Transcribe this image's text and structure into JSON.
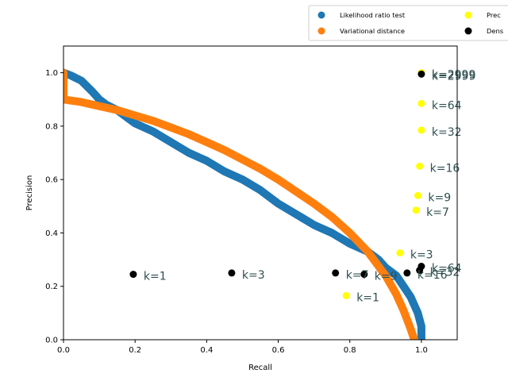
{
  "chart_data": {
    "type": "scatter",
    "xlabel": "Recall",
    "ylabel": "Precision",
    "xlim": [
      0.0,
      1.1
    ],
    "ylim": [
      0.0,
      1.1
    ],
    "x_ticks": [
      "0.0",
      "0.2",
      "0.4",
      "0.6",
      "0.8",
      "1.0"
    ],
    "y_ticks": [
      "0.0",
      "0.2",
      "0.4",
      "0.6",
      "0.8",
      "1.0"
    ],
    "grid": false,
    "legend_position": "top-right (outside plot)",
    "series": [
      {
        "name": "Likelihood ratio test",
        "color": "#1f77b4",
        "style": "curve",
        "points": [
          [
            0.0,
            1.0
          ],
          [
            0.02,
            0.99
          ],
          [
            0.05,
            0.97
          ],
          [
            0.08,
            0.93
          ],
          [
            0.1,
            0.9
          ],
          [
            0.12,
            0.88
          ],
          [
            0.15,
            0.86
          ],
          [
            0.18,
            0.83
          ],
          [
            0.2,
            0.81
          ],
          [
            0.25,
            0.78
          ],
          [
            0.3,
            0.74
          ],
          [
            0.35,
            0.7
          ],
          [
            0.4,
            0.67
          ],
          [
            0.45,
            0.63
          ],
          [
            0.5,
            0.6
          ],
          [
            0.55,
            0.56
          ],
          [
            0.6,
            0.51
          ],
          [
            0.65,
            0.47
          ],
          [
            0.7,
            0.43
          ],
          [
            0.75,
            0.4
          ],
          [
            0.8,
            0.36
          ],
          [
            0.85,
            0.33
          ],
          [
            0.88,
            0.3
          ],
          [
            0.9,
            0.27
          ],
          [
            0.93,
            0.24
          ],
          [
            0.95,
            0.2
          ],
          [
            0.97,
            0.16
          ],
          [
            0.99,
            0.1
          ],
          [
            1.0,
            0.05
          ],
          [
            1.0,
            0.0
          ]
        ]
      },
      {
        "name": "Variational distance",
        "color": "#ff7f0e",
        "style": "curve",
        "points": [
          [
            0.0,
            1.0
          ],
          [
            0.0,
            0.9
          ],
          [
            0.05,
            0.89
          ],
          [
            0.1,
            0.875
          ],
          [
            0.15,
            0.86
          ],
          [
            0.2,
            0.84
          ],
          [
            0.25,
            0.82
          ],
          [
            0.3,
            0.795
          ],
          [
            0.35,
            0.77
          ],
          [
            0.4,
            0.74
          ],
          [
            0.45,
            0.71
          ],
          [
            0.5,
            0.675
          ],
          [
            0.55,
            0.64
          ],
          [
            0.6,
            0.6
          ],
          [
            0.65,
            0.555
          ],
          [
            0.7,
            0.51
          ],
          [
            0.75,
            0.46
          ],
          [
            0.8,
            0.4
          ],
          [
            0.85,
            0.33
          ],
          [
            0.9,
            0.24
          ],
          [
            0.93,
            0.17
          ],
          [
            0.95,
            0.11
          ],
          [
            0.97,
            0.04
          ],
          [
            0.98,
            0.0
          ]
        ]
      },
      {
        "name": "Precision",
        "color": "#ffff00",
        "style": "points",
        "points": [
          {
            "x": 0.79,
            "y": 0.165,
            "label": "k=1"
          },
          {
            "x": 0.94,
            "y": 0.325,
            "label": "k=3"
          },
          {
            "x": 0.985,
            "y": 0.485,
            "label": "k=7"
          },
          {
            "x": 0.99,
            "y": 0.54,
            "label": "k=9"
          },
          {
            "x": 0.995,
            "y": 0.65,
            "label": "k=16"
          },
          {
            "x": 1.0,
            "y": 0.785,
            "label": "k=32"
          },
          {
            "x": 1.0,
            "y": 0.885,
            "label": "k=64"
          },
          {
            "x": 1.0,
            "y": 1.0,
            "label": "k=2999"
          }
        ]
      },
      {
        "name": "Dens",
        "color": "#000000",
        "style": "points",
        "points": [
          {
            "x": 0.195,
            "y": 0.245,
            "label": "k=1"
          },
          {
            "x": 0.47,
            "y": 0.25,
            "label": "k=3"
          },
          {
            "x": 0.76,
            "y": 0.25,
            "label": "k=7"
          },
          {
            "x": 0.84,
            "y": 0.245,
            "label": "k=9"
          },
          {
            "x": 0.96,
            "y": 0.25,
            "label": "k=16"
          },
          {
            "x": 0.995,
            "y": 0.26,
            "label": "k=32"
          },
          {
            "x": 1.0,
            "y": 0.275,
            "label": "k=64"
          },
          {
            "x": 1.0,
            "y": 0.995,
            "label": "k=2999"
          }
        ]
      }
    ],
    "legend": [
      {
        "label": "Likelihood ratio test",
        "color": "#1f77b4"
      },
      {
        "label": "Variational distance",
        "color": "#ff7f0e"
      },
      {
        "label": "Prec",
        "color": "#ffff00"
      },
      {
        "label": "Dens",
        "color": "#000000"
      }
    ]
  }
}
